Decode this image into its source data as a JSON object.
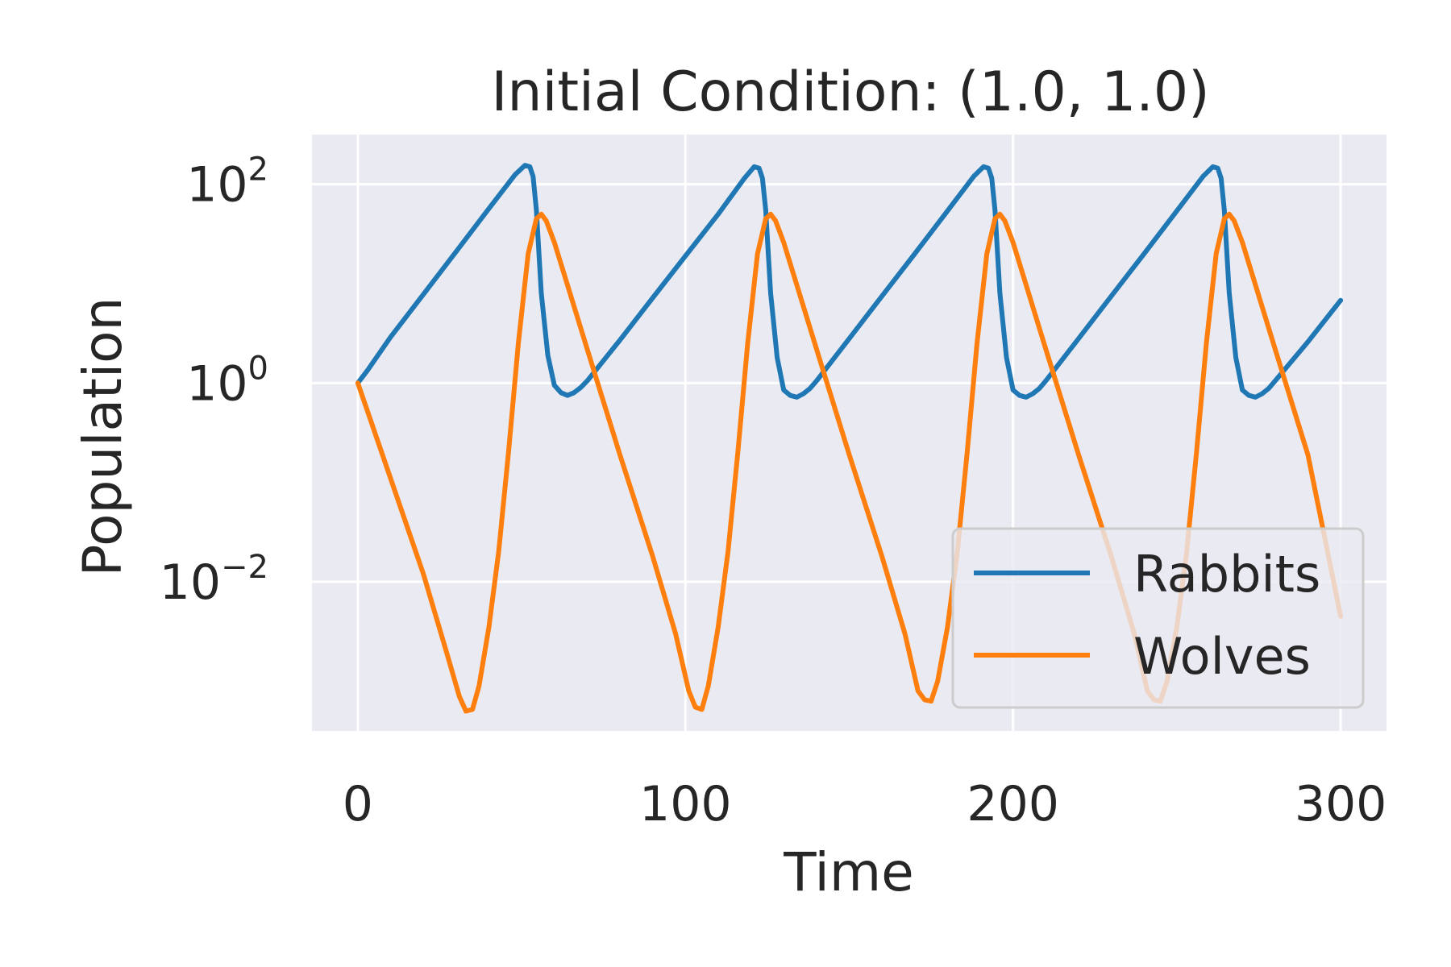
{
  "chart_data": {
    "type": "line",
    "title": "Initial Condition: (1.0, 1.0)",
    "xlabel": "Time",
    "ylabel": "Population",
    "xlim": [
      -14,
      314
    ],
    "ylim_log10": [
      -3.5,
      2.5
    ],
    "yscale": "log",
    "grid": true,
    "legend_position": "lower-right",
    "x_ticks": [
      0,
      100,
      200,
      300
    ],
    "y_ticks": [
      {
        "base": "10",
        "exp": "−2",
        "value": 0.01
      },
      {
        "base": "10",
        "exp": "0",
        "value": 1
      },
      {
        "base": "10",
        "exp": "2",
        "value": 100
      }
    ],
    "series": [
      {
        "name": "Rabbits",
        "color": "#1f77b4",
        "points": [
          [
            0,
            1.0
          ],
          [
            3,
            1.35
          ],
          [
            10,
            2.9
          ],
          [
            20,
            7.8
          ],
          [
            30,
            21
          ],
          [
            40,
            57
          ],
          [
            48,
            125
          ],
          [
            51,
            155
          ],
          [
            52.5,
            150
          ],
          [
            53.5,
            120
          ],
          [
            54.5,
            55
          ],
          [
            56,
            8
          ],
          [
            58,
            1.9
          ],
          [
            60,
            0.95
          ],
          [
            62,
            0.8
          ],
          [
            64,
            0.75
          ],
          [
            66,
            0.8
          ],
          [
            68,
            0.9
          ],
          [
            70,
            1.05
          ],
          [
            80,
            2.7
          ],
          [
            90,
            7.2
          ],
          [
            100,
            19
          ],
          [
            110,
            50
          ],
          [
            118,
            115
          ],
          [
            121,
            150
          ],
          [
            122.5,
            145
          ],
          [
            123.5,
            115
          ],
          [
            124.5,
            55
          ],
          [
            126,
            8
          ],
          [
            128,
            1.8
          ],
          [
            130,
            0.85
          ],
          [
            132,
            0.75
          ],
          [
            134,
            0.72
          ],
          [
            136,
            0.78
          ],
          [
            138,
            0.88
          ],
          [
            140,
            1.05
          ],
          [
            150,
            2.8
          ],
          [
            160,
            7.5
          ],
          [
            170,
            20
          ],
          [
            180,
            54
          ],
          [
            188,
            120
          ],
          [
            191,
            150
          ],
          [
            192.5,
            145
          ],
          [
            193.5,
            115
          ],
          [
            194.5,
            55
          ],
          [
            196,
            8
          ],
          [
            198,
            1.8
          ],
          [
            200,
            0.85
          ],
          [
            202,
            0.75
          ],
          [
            204,
            0.72
          ],
          [
            206,
            0.78
          ],
          [
            208,
            0.88
          ],
          [
            210,
            1.05
          ],
          [
            220,
            2.8
          ],
          [
            230,
            7.5
          ],
          [
            240,
            20
          ],
          [
            250,
            54
          ],
          [
            258,
            120
          ],
          [
            261,
            150
          ],
          [
            262.5,
            145
          ],
          [
            263.5,
            115
          ],
          [
            264.5,
            55
          ],
          [
            266,
            8
          ],
          [
            268,
            1.8
          ],
          [
            270,
            0.85
          ],
          [
            272,
            0.75
          ],
          [
            274,
            0.72
          ],
          [
            276,
            0.78
          ],
          [
            278,
            0.88
          ],
          [
            280,
            1.05
          ],
          [
            290,
            2.6
          ],
          [
            300,
            6.8
          ]
        ]
      },
      {
        "name": "Wolves",
        "color": "#ff7f0e",
        "points": [
          [
            0,
            1.0
          ],
          [
            10,
            0.11
          ],
          [
            20,
            0.012
          ],
          [
            27,
            0.002
          ],
          [
            31,
            0.0007
          ],
          [
            33,
            0.0005
          ],
          [
            35,
            0.00052
          ],
          [
            37,
            0.0009
          ],
          [
            40,
            0.0035
          ],
          [
            43,
            0.02
          ],
          [
            46,
            0.2
          ],
          [
            49,
            2.5
          ],
          [
            52,
            20
          ],
          [
            54.5,
            45
          ],
          [
            56,
            50
          ],
          [
            57.5,
            43
          ],
          [
            60,
            26
          ],
          [
            70,
            2.2
          ],
          [
            80,
            0.19
          ],
          [
            90,
            0.018
          ],
          [
            97,
            0.003
          ],
          [
            101,
            0.0008
          ],
          [
            103,
            0.00055
          ],
          [
            105,
            0.00052
          ],
          [
            107,
            0.0009
          ],
          [
            110,
            0.0035
          ],
          [
            113,
            0.02
          ],
          [
            116,
            0.2
          ],
          [
            119,
            2.5
          ],
          [
            122,
            20
          ],
          [
            124.5,
            45
          ],
          [
            126,
            50
          ],
          [
            127.5,
            43
          ],
          [
            130,
            26
          ],
          [
            140,
            2.2
          ],
          [
            150,
            0.19
          ],
          [
            160,
            0.018
          ],
          [
            167,
            0.003
          ],
          [
            171,
            0.0008
          ],
          [
            173,
            0.00065
          ],
          [
            175,
            0.00063
          ],
          [
            177,
            0.001
          ],
          [
            180,
            0.0035
          ],
          [
            183,
            0.02
          ],
          [
            186,
            0.2
          ],
          [
            189,
            2.5
          ],
          [
            192,
            20
          ],
          [
            194.5,
            45
          ],
          [
            196,
            50
          ],
          [
            197.5,
            43
          ],
          [
            200,
            26
          ],
          [
            210,
            2.2
          ],
          [
            220,
            0.19
          ],
          [
            230,
            0.018
          ],
          [
            237,
            0.003
          ],
          [
            241,
            0.0008
          ],
          [
            243,
            0.00065
          ],
          [
            245,
            0.00063
          ],
          [
            247,
            0.001
          ],
          [
            250,
            0.0035
          ],
          [
            253,
            0.02
          ],
          [
            256,
            0.2
          ],
          [
            259,
            2.5
          ],
          [
            262,
            20
          ],
          [
            264.5,
            45
          ],
          [
            266,
            50
          ],
          [
            267.5,
            43
          ],
          [
            270,
            26
          ],
          [
            280,
            2.2
          ],
          [
            290,
            0.19
          ],
          [
            300,
            0.0045
          ]
        ]
      }
    ]
  }
}
